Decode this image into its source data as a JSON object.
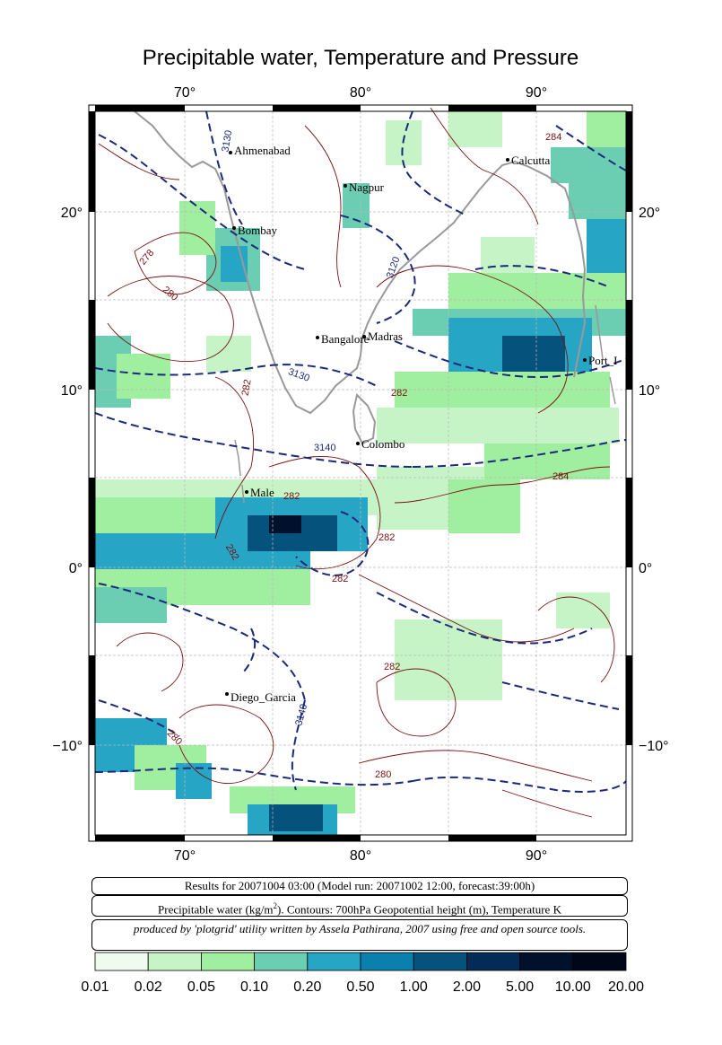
{
  "title": "Precipitable water, Temperature and Pressure",
  "axes": {
    "lon_ticks": [
      "70°",
      "80°",
      "90°"
    ],
    "lat_ticks": [
      "20°",
      "10°",
      "0°",
      "−10°"
    ]
  },
  "cities": [
    {
      "name": "Ahmenabad"
    },
    {
      "name": "Nagpur"
    },
    {
      "name": "Calcutta"
    },
    {
      "name": "Bombay"
    },
    {
      "name": "Bangalore"
    },
    {
      "name": "Madras"
    },
    {
      "name": "Port_I"
    },
    {
      "name": "Colombo"
    },
    {
      "name": "Male"
    },
    {
      "name": "Diego_Garcia"
    }
  ],
  "contour_labels": {
    "height": [
      "3130",
      "3120",
      "3130",
      "3140",
      "3140"
    ],
    "temperature": [
      "278",
      "280",
      "282",
      "282",
      "282",
      "282",
      "282",
      "282",
      "282",
      "280",
      "280",
      "284",
      "284"
    ]
  },
  "info": {
    "results": "Results for 20071004 03:00 (Model run: 20071002 12:00, forecast:39:00h)",
    "description_pre": "Precipitable water (kg/m",
    "description_sup": "2",
    "description_post": ").  Contours: 700hPa Geopotential height (m), Temperature K",
    "credit": "produced by 'plotgrid' utility written by Assela Pathirana, 2007 using free and open source tools."
  },
  "legend": {
    "labels": [
      "0.01",
      "0.02",
      "0.05",
      "0.10",
      "0.20",
      "0.50",
      "1.00",
      "2.00",
      "5.00",
      "10.00",
      "20.00"
    ],
    "colors": [
      "#effbef",
      "#c6f4c6",
      "#a0ee9f",
      "#6bcdb2",
      "#27a5c4",
      "#0b80ae",
      "#05537c",
      "#032b55",
      "#01112c",
      "#000718"
    ]
  }
}
